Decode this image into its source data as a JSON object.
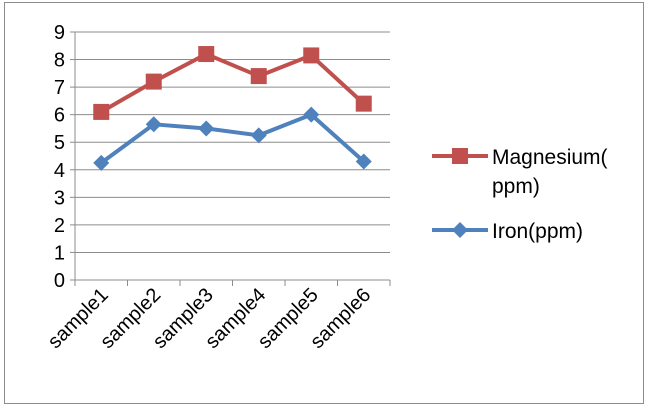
{
  "chart_data": {
    "type": "line",
    "categories": [
      "sample1",
      "sample2",
      "sample3",
      "sample4",
      "sample5",
      "sample6"
    ],
    "series": [
      {
        "name": "Magnesium(ppm)",
        "legend_lines": [
          "Magnesium(",
          "ppm)"
        ],
        "color": "#c0504d",
        "marker": "square",
        "values": [
          6.1,
          7.2,
          8.2,
          7.4,
          8.15,
          6.4
        ]
      },
      {
        "name": "Iron(ppm)",
        "legend_lines": [
          "Iron(ppm)"
        ],
        "color": "#4f81bd",
        "marker": "diamond",
        "values": [
          4.25,
          5.65,
          5.5,
          5.25,
          6.0,
          4.3
        ]
      }
    ],
    "yticks": [
      "0",
      "1",
      "2",
      "3",
      "4",
      "5",
      "6",
      "7",
      "8",
      "9"
    ],
    "ylim": [
      0,
      9
    ],
    "grid": true,
    "legend_position": "right"
  }
}
